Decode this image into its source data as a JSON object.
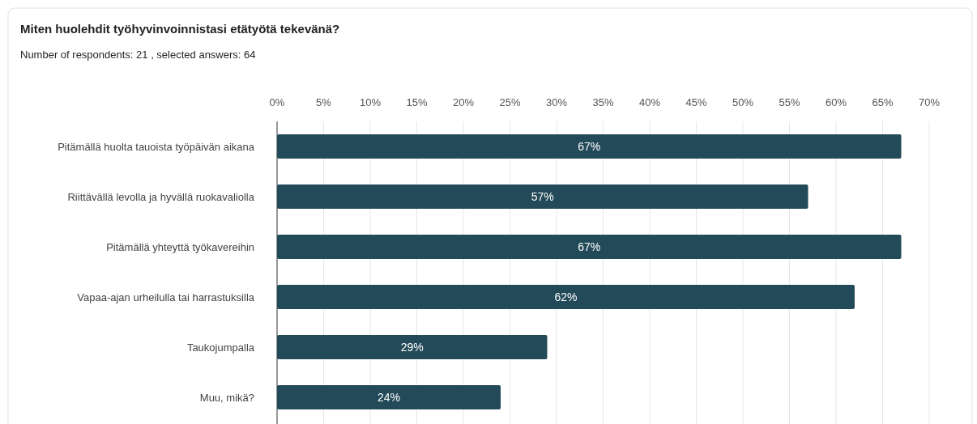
{
  "chart_data": {
    "type": "bar",
    "orientation": "horizontal",
    "title": "Miten huolehdit työhyvinvoinnistasi etätyötä tekevänä?",
    "subtitle": "Number of respondents: 21 , selected answers: 64",
    "categories": [
      "Pitämällä huolta tauoista työpäivän aikana",
      "Riittävällä levolla ja hyvällä ruokavaliolla",
      "Pitämällä yhteyttä työkavereihin",
      "Vapaa-ajan urheilulla tai harrastuksilla",
      "Taukojumpalla",
      "Muu, mikä?"
    ],
    "values": [
      67,
      57,
      67,
      62,
      29,
      24
    ],
    "value_labels": [
      "67%",
      "57%",
      "67%",
      "62%",
      "29%",
      "24%"
    ],
    "color": "#234a59",
    "xlim": [
      0,
      70
    ],
    "xticks": [
      {
        "value": 0,
        "label": "0%"
      },
      {
        "value": 5,
        "label": "5%"
      },
      {
        "value": 10,
        "label": "10%"
      },
      {
        "value": 15,
        "label": "15%"
      },
      {
        "value": 20,
        "label": "20%"
      },
      {
        "value": 25,
        "label": "25%"
      },
      {
        "value": 30,
        "label": "30%"
      },
      {
        "value": 35,
        "label": "35%"
      },
      {
        "value": 40,
        "label": "40%"
      },
      {
        "value": 45,
        "label": "45%"
      },
      {
        "value": 50,
        "label": "50%"
      },
      {
        "value": 55,
        "label": "55%"
      },
      {
        "value": 60,
        "label": "60%"
      },
      {
        "value": 65,
        "label": "65%"
      },
      {
        "value": 70,
        "label": "70%"
      }
    ],
    "grid": "x"
  }
}
